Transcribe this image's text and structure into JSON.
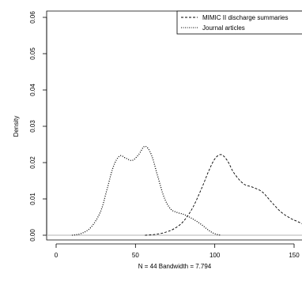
{
  "chart_data": {
    "type": "line",
    "title": "",
    "xlabel": "N = 44   Bandwidth = 7.794",
    "ylabel": "Density",
    "xlim": [
      -5,
      155
    ],
    "ylim": [
      -0.002,
      0.061
    ],
    "x_ticks": [
      0,
      50,
      100,
      150
    ],
    "x_tick_labels": [
      "0",
      "50",
      "100",
      "150"
    ],
    "y_ticks": [
      0.0,
      0.01,
      0.02,
      0.03,
      0.04,
      0.05,
      0.06
    ],
    "y_tick_labels": [
      "0.00",
      "0.01",
      "0.02",
      "0.03",
      "0.04",
      "0.05",
      "0.06"
    ],
    "grid": false,
    "legend_position": "top-right",
    "baseline": 0,
    "series": [
      {
        "name": "MIMIC II discharge summaries",
        "line_style": "dashed",
        "color": "#000000",
        "x": [
          56,
          62,
          68,
          74,
          80,
          86,
          92,
          96,
          100,
          104,
          108,
          112,
          118,
          124,
          130,
          136,
          142,
          148,
          152,
          155
        ],
        "y": [
          0.0,
          0.0002,
          0.0007,
          0.0017,
          0.0037,
          0.0075,
          0.0132,
          0.0175,
          0.021,
          0.0222,
          0.0205,
          0.0172,
          0.0142,
          0.0132,
          0.0119,
          0.009,
          0.0063,
          0.0046,
          0.0038,
          0.0032
        ]
      },
      {
        "name": "Journal articles",
        "line_style": "dotted",
        "color": "#000000",
        "x": [
          10,
          16,
          22,
          28,
          32,
          36,
          40,
          44,
          48,
          52,
          56,
          60,
          64,
          68,
          72,
          76,
          80,
          84,
          88,
          92,
          96,
          100,
          104
        ],
        "y": [
          0.0,
          0.0005,
          0.0022,
          0.0065,
          0.0125,
          0.0188,
          0.0218,
          0.0212,
          0.0206,
          0.0222,
          0.0245,
          0.0222,
          0.0163,
          0.0105,
          0.0073,
          0.0063,
          0.0058,
          0.005,
          0.004,
          0.0028,
          0.0014,
          0.0004,
          0.0
        ]
      }
    ]
  }
}
